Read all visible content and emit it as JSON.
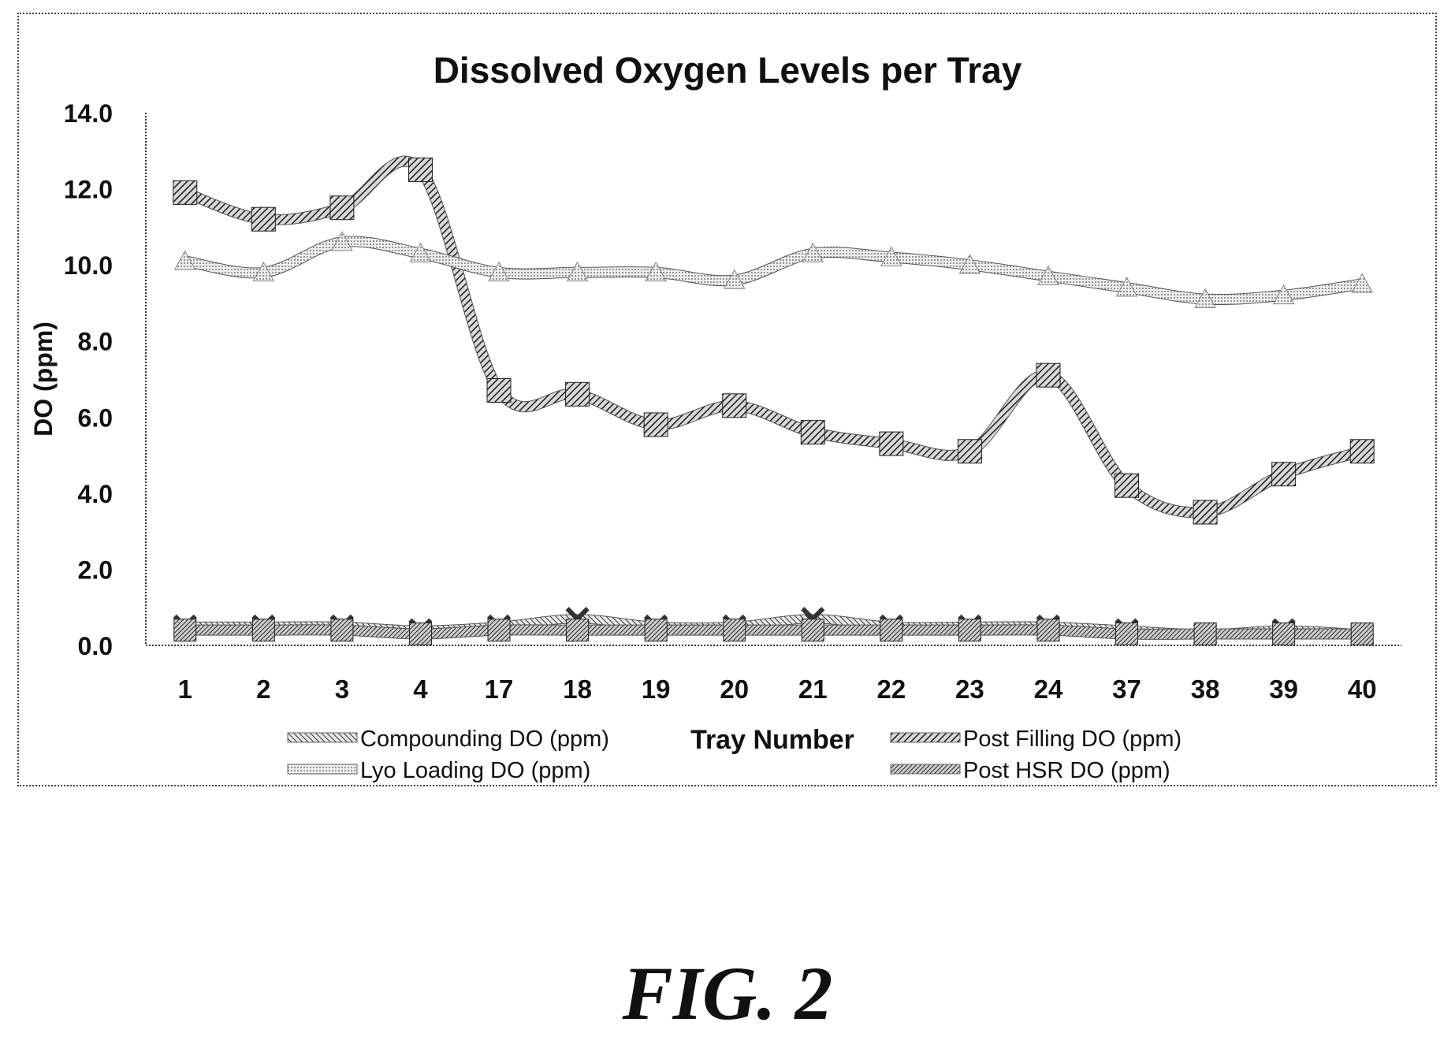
{
  "chart_data": {
    "type": "line",
    "title": "Dissolved Oxygen Levels per Tray",
    "xlabel": "Tray Number",
    "ylabel": "DO (ppm)",
    "categories": [
      "1",
      "2",
      "3",
      "4",
      "17",
      "18",
      "19",
      "20",
      "21",
      "22",
      "23",
      "24",
      "37",
      "38",
      "39",
      "40"
    ],
    "ylim": [
      0,
      14
    ],
    "yticks": [
      "0.0",
      "2.0",
      "4.0",
      "6.0",
      "8.0",
      "10.0",
      "12.0",
      "14.0"
    ],
    "grid": false,
    "legend_position": "bottom",
    "series": [
      {
        "name": "Compounding DO (ppm)",
        "pattern": "light-hatch",
        "color": "#555555",
        "values": [
          0.5,
          0.5,
          0.5,
          0.4,
          0.5,
          0.7,
          0.5,
          0.5,
          0.7,
          0.5,
          0.5,
          0.5,
          0.4,
          0.3,
          0.4,
          0.3
        ]
      },
      {
        "name": "Post Filling DO (ppm)",
        "pattern": "heavy-hatch",
        "color": "#333333",
        "values": [
          11.9,
          11.2,
          11.5,
          12.5,
          6.7,
          6.6,
          5.8,
          6.3,
          5.6,
          5.3,
          5.1,
          7.1,
          4.2,
          3.5,
          4.5,
          5.1
        ]
      },
      {
        "name": "Lyo Loading DO (ppm)",
        "pattern": "dots",
        "color": "#999999",
        "values": [
          10.1,
          9.8,
          10.6,
          10.3,
          9.8,
          9.8,
          9.8,
          9.6,
          10.3,
          10.2,
          10.0,
          9.7,
          9.4,
          9.1,
          9.2,
          9.5
        ]
      },
      {
        "name": "Post HSR DO (ppm)",
        "pattern": "dense-hatch",
        "color": "#444444",
        "values": [
          0.4,
          0.4,
          0.4,
          0.3,
          0.4,
          0.4,
          0.4,
          0.4,
          0.4,
          0.4,
          0.4,
          0.4,
          0.3,
          0.3,
          0.3,
          0.3
        ]
      }
    ]
  },
  "caption": "FIG. 2"
}
